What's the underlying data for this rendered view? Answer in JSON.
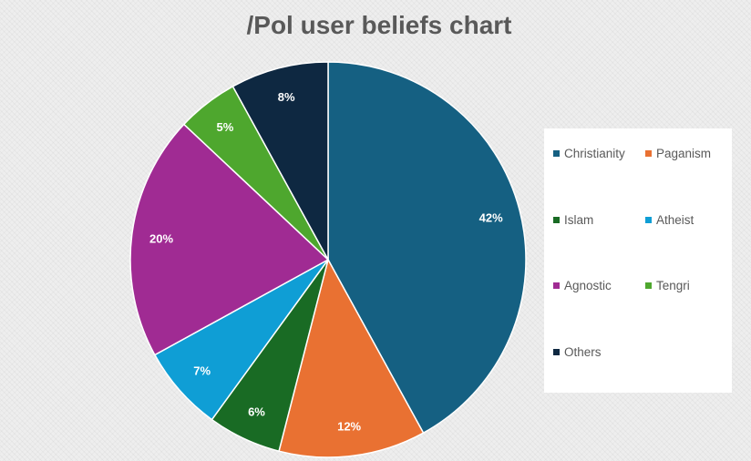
{
  "chart_data": {
    "type": "pie",
    "title": "/Pol user beliefs chart",
    "categories": [
      "Christianity",
      "Paganism",
      "Islam",
      "Atheist",
      "Agnostic",
      "Tengri",
      "Others"
    ],
    "values": [
      42,
      12,
      6,
      7,
      20,
      5,
      8
    ],
    "data_labels": [
      "42%",
      "12%",
      "6%",
      "7%",
      "20%",
      "5%",
      "8%"
    ],
    "colors": [
      "#156082",
      "#E97132",
      "#196B24",
      "#0F9ED5",
      "#A02B93",
      "#4EA72E",
      "#0E2841"
    ],
    "legend": "right"
  }
}
